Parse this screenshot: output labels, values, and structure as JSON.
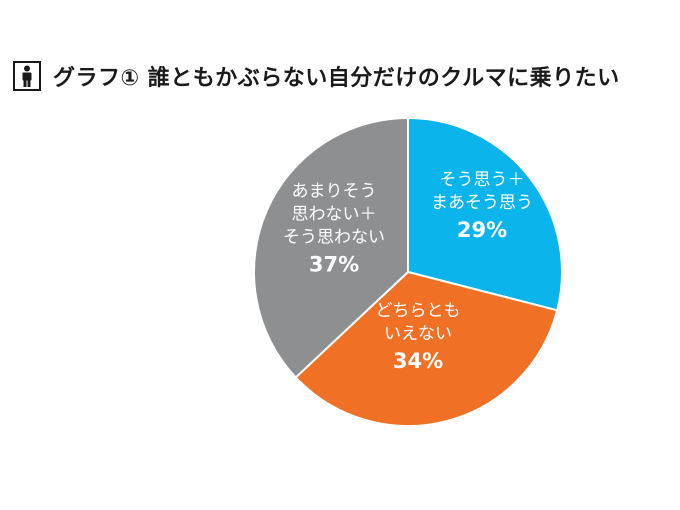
{
  "title": "グラフ① 誰ともかぶらない自分だけのクルマに乗りたい",
  "icon": "person-icon",
  "chart_data": {
    "type": "pie",
    "categories": [
      "そう思う＋まあそう思う",
      "どちらともいえない",
      "あまりそう思わない＋そう思わない"
    ],
    "values": [
      29,
      34,
      37
    ],
    "unit": "%",
    "colors": [
      "#0bb4ea",
      "#f07125",
      "#8e8f91"
    ],
    "slices": [
      {
        "label_lines": [
          "そう思う＋",
          "まあそう思う"
        ],
        "percent_text": "29%"
      },
      {
        "label_lines": [
          "どちらとも",
          "いえない"
        ],
        "percent_text": "34%"
      },
      {
        "label_lines": [
          "あまりそう",
          "思わない＋",
          "そう思わない"
        ],
        "percent_text": "37%"
      }
    ]
  }
}
